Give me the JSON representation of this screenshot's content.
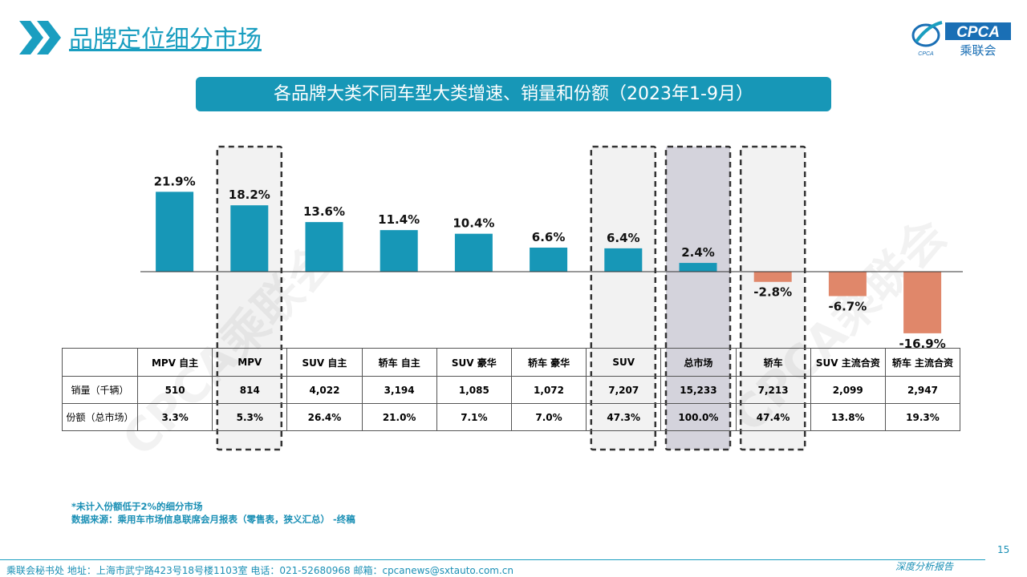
{
  "header": {
    "title": "品牌定位细分市场"
  },
  "logo": {
    "brand": "CPCA",
    "cn": "乘联会",
    "small": "CPCA"
  },
  "watermark": "CPCA乘联会",
  "colors": {
    "accent": "#1a9ec0",
    "positive": "#1797b7",
    "negative": "#e0876a",
    "highlight_bg": "#f2f2f2",
    "highlight_dark_bg": "#d4d3dc"
  },
  "chart_data": {
    "type": "bar",
    "title": "各品牌大类不同车型大类增速、销量和份额（2023年1-9月）",
    "categories": [
      "MPV 自主",
      "MPV",
      "SUV 自主",
      "轿车 自主",
      "SUV 豪华",
      "轿车 豪华",
      "SUV",
      "总市场",
      "轿车",
      "SUV 主流合资",
      "轿车 主流合资"
    ],
    "values": [
      21.9,
      18.2,
      13.6,
      11.4,
      10.4,
      6.6,
      6.4,
      2.4,
      -2.8,
      -6.7,
      -16.9
    ],
    "value_labels": [
      "21.9%",
      "18.2%",
      "13.6%",
      "11.4%",
      "10.4%",
      "6.6%",
      "6.4%",
      "2.4%",
      "-2.8%",
      "-6.7%",
      "-16.9%"
    ],
    "unit": "%",
    "highlighted": [
      "MPV",
      "SUV",
      "总市场",
      "轿车"
    ],
    "table": {
      "rows": [
        {
          "label": "销量（千辆）",
          "values": [
            "510",
            "814",
            "4,022",
            "3,194",
            "1,085",
            "1,072",
            "7,207",
            "15,233",
            "7,213",
            "2,099",
            "2,947"
          ]
        },
        {
          "label": "份额（总市场）",
          "values": [
            "3.3%",
            "5.3%",
            "26.4%",
            "21.0%",
            "7.1%",
            "7.0%",
            "47.3%",
            "100.0%",
            "47.4%",
            "13.8%",
            "19.3%"
          ]
        }
      ]
    }
  },
  "footnote": {
    "line1": "*未计入份额低于2%的细分市场",
    "line2": "数据来源：乘用车市场信息联席会月报表（零售表，狭义汇总）  -终稿"
  },
  "footer": {
    "text": "乘联会秘书处    地址：上海市武宁路423号18号楼1103室    电话：021-52680968    邮箱：cpcanews@sxtauto.com.cn",
    "page": "15",
    "tag": "深度分析报告"
  }
}
